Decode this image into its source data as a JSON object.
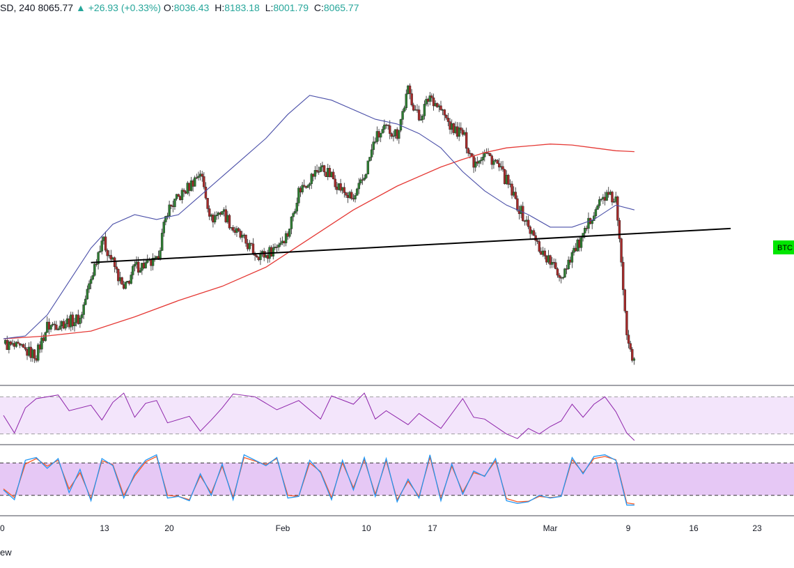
{
  "header": {
    "symbol": "SD, 240",
    "last": "8065.77",
    "change_arrow": "▲",
    "change": "+26.93 (+0.33%)",
    "o_label": "O:",
    "o_value": "8036.43",
    "h_label": "H:",
    "h_value": "8183.18",
    "l_label": "L:",
    "l_value": "8001.79",
    "c_label": "C:",
    "c_value": "8065.77"
  },
  "price_tag": {
    "label": "BTC",
    "color": "#00e600"
  },
  "footer": {
    "brand_fragment": "ew"
  },
  "colors": {
    "candle_up": "#2e7d32",
    "candle_down": "#a52a2a",
    "ma_fast": "#4a4fa8",
    "ma_slow": "#e53935",
    "trendline": "#000000",
    "rsi_line": "#8e24aa",
    "rsi_band": "#f3e5fb",
    "stoch_k": "#2196f3",
    "stoch_d": "#ff5722",
    "stoch_band": "#e6c8f5"
  },
  "chart_data": {
    "type": "candlestick",
    "x_ticks": [
      "0",
      "13",
      "20",
      "Feb",
      "10",
      "17",
      "Mar",
      "9",
      "16",
      "23"
    ],
    "price_path": [
      [
        0,
        8300
      ],
      [
        3,
        8180
      ],
      [
        4,
        8480
      ],
      [
        7,
        8560
      ],
      [
        9,
        9400
      ],
      [
        10,
        9150
      ],
      [
        11,
        8850
      ],
      [
        12,
        9100
      ],
      [
        14,
        9150
      ],
      [
        15,
        9700
      ],
      [
        17,
        9950
      ],
      [
        18,
        10100
      ],
      [
        19,
        9600
      ],
      [
        20,
        9700
      ],
      [
        21,
        9500
      ],
      [
        23,
        9250
      ],
      [
        24,
        9220
      ],
      [
        26,
        9450
      ],
      [
        27,
        9900
      ],
      [
        29,
        10150
      ],
      [
        30,
        10050
      ],
      [
        31,
        9900
      ],
      [
        32,
        9800
      ],
      [
        33,
        10050
      ],
      [
        34,
        10450
      ],
      [
        35,
        10550
      ],
      [
        36,
        10500
      ],
      [
        37,
        10950
      ],
      [
        38,
        10650
      ],
      [
        39,
        10900
      ],
      [
        40,
        10750
      ],
      [
        41,
        10550
      ],
      [
        42,
        10500
      ],
      [
        43,
        10200
      ],
      [
        44,
        10300
      ],
      [
        45,
        10200
      ],
      [
        46,
        10000
      ],
      [
        47,
        9750
      ],
      [
        49,
        9300
      ],
      [
        50,
        9150
      ],
      [
        51,
        9000
      ],
      [
        52,
        9250
      ],
      [
        53,
        9400
      ],
      [
        54,
        9700
      ],
      [
        55,
        9850
      ],
      [
        56,
        9800
      ],
      [
        57,
        8450
      ],
      [
        57.7,
        8065
      ]
    ],
    "ma_fast_path": [
      [
        0,
        8350
      ],
      [
        2,
        8380
      ],
      [
        4,
        8600
      ],
      [
        6,
        8950
      ],
      [
        8,
        9300
      ],
      [
        10,
        9550
      ],
      [
        12,
        9650
      ],
      [
        14,
        9600
      ],
      [
        16,
        9650
      ],
      [
        18,
        9850
      ],
      [
        20,
        10050
      ],
      [
        22,
        10250
      ],
      [
        24,
        10450
      ],
      [
        26,
        10700
      ],
      [
        28,
        10900
      ],
      [
        30,
        10850
      ],
      [
        32,
        10750
      ],
      [
        34,
        10650
      ],
      [
        36,
        10600
      ],
      [
        38,
        10500
      ],
      [
        40,
        10350
      ],
      [
        42,
        10100
      ],
      [
        44,
        9900
      ],
      [
        46,
        9750
      ],
      [
        48,
        9650
      ],
      [
        50,
        9520
      ],
      [
        52,
        9520
      ],
      [
        54,
        9600
      ],
      [
        56,
        9750
      ],
      [
        57.7,
        9700
      ]
    ],
    "ma_slow_path": [
      [
        0,
        8350
      ],
      [
        4,
        8380
      ],
      [
        8,
        8430
      ],
      [
        12,
        8580
      ],
      [
        16,
        8750
      ],
      [
        20,
        8900
      ],
      [
        24,
        9100
      ],
      [
        28,
        9400
      ],
      [
        32,
        9700
      ],
      [
        36,
        9950
      ],
      [
        40,
        10150
      ],
      [
        42,
        10230
      ],
      [
        44,
        10300
      ],
      [
        46,
        10350
      ],
      [
        48,
        10370
      ],
      [
        50,
        10390
      ],
      [
        52,
        10380
      ],
      [
        54,
        10350
      ],
      [
        56,
        10320
      ],
      [
        57.7,
        10310
      ]
    ],
    "trendline": {
      "start": [
        8,
        9148
      ],
      "end": [
        66.5,
        9505
      ]
    },
    "price_range": [
      7920,
      11680
    ],
    "rsi": {
      "range": [
        20,
        80
      ],
      "band": [
        30,
        70
      ],
      "path": [
        [
          0,
          50
        ],
        [
          1,
          31
        ],
        [
          2,
          58
        ],
        [
          3,
          68
        ],
        [
          5,
          72
        ],
        [
          6,
          55
        ],
        [
          8,
          61
        ],
        [
          9,
          45
        ],
        [
          10,
          64
        ],
        [
          11,
          74
        ],
        [
          12,
          48
        ],
        [
          13,
          63
        ],
        [
          14,
          66
        ],
        [
          15,
          42
        ],
        [
          17,
          49
        ],
        [
          18,
          33
        ],
        [
          19,
          45
        ],
        [
          20,
          58
        ],
        [
          21,
          73
        ],
        [
          23,
          70
        ],
        [
          25,
          56
        ],
        [
          27,
          66
        ],
        [
          29,
          46
        ],
        [
          30,
          71
        ],
        [
          32,
          62
        ],
        [
          33,
          74
        ],
        [
          34,
          46
        ],
        [
          35,
          55
        ],
        [
          37,
          40
        ],
        [
          38,
          52
        ],
        [
          40,
          36
        ],
        [
          42,
          68
        ],
        [
          43,
          48
        ],
        [
          44,
          46
        ],
        [
          46,
          30
        ],
        [
          47,
          25
        ],
        [
          48,
          36
        ],
        [
          49,
          30
        ],
        [
          50,
          38
        ],
        [
          51,
          44
        ],
        [
          52,
          62
        ],
        [
          53,
          48
        ],
        [
          54,
          62
        ],
        [
          55,
          70
        ],
        [
          56,
          54
        ],
        [
          57,
          31
        ],
        [
          57.7,
          23
        ]
      ]
    },
    "stoch": {
      "range": [
        -10,
        110
      ],
      "band": [
        20,
        80
      ],
      "k_path": [
        [
          0,
          30
        ],
        [
          1,
          12
        ],
        [
          2,
          85
        ],
        [
          3,
          90
        ],
        [
          4,
          70
        ],
        [
          5,
          88
        ],
        [
          6,
          25
        ],
        [
          7,
          68
        ],
        [
          8,
          10
        ],
        [
          9,
          88
        ],
        [
          10,
          75
        ],
        [
          11,
          15
        ],
        [
          12,
          60
        ],
        [
          13,
          85
        ],
        [
          14,
          95
        ],
        [
          15,
          15
        ],
        [
          16,
          18
        ],
        [
          17,
          10
        ],
        [
          18,
          60
        ],
        [
          19,
          20
        ],
        [
          20,
          78
        ],
        [
          21,
          12
        ],
        [
          22,
          95
        ],
        [
          24,
          75
        ],
        [
          25,
          90
        ],
        [
          26,
          15
        ],
        [
          27,
          18
        ],
        [
          28,
          85
        ],
        [
          29,
          62
        ],
        [
          30,
          12
        ],
        [
          31,
          85
        ],
        [
          32,
          30
        ],
        [
          33,
          90
        ],
        [
          34,
          18
        ],
        [
          35,
          88
        ],
        [
          36,
          8
        ],
        [
          37,
          50
        ],
        [
          38,
          15
        ],
        [
          39,
          95
        ],
        [
          40,
          10
        ],
        [
          41,
          78
        ],
        [
          42,
          22
        ],
        [
          43,
          65
        ],
        [
          44,
          55
        ],
        [
          45,
          88
        ],
        [
          46,
          10
        ],
        [
          47,
          5
        ],
        [
          48,
          8
        ],
        [
          49,
          20
        ],
        [
          50,
          15
        ],
        [
          51,
          18
        ],
        [
          52,
          90
        ],
        [
          53,
          60
        ],
        [
          54,
          92
        ],
        [
          55,
          95
        ],
        [
          56,
          85
        ],
        [
          57,
          2
        ],
        [
          57.7,
          2
        ]
      ],
      "d_path": [
        [
          0,
          32
        ],
        [
          1,
          16
        ],
        [
          2,
          78
        ],
        [
          3,
          88
        ],
        [
          4,
          74
        ],
        [
          5,
          85
        ],
        [
          6,
          32
        ],
        [
          7,
          62
        ],
        [
          8,
          14
        ],
        [
          9,
          84
        ],
        [
          10,
          77
        ],
        [
          11,
          20
        ],
        [
          12,
          56
        ],
        [
          13,
          82
        ],
        [
          14,
          92
        ],
        [
          15,
          20
        ],
        [
          16,
          18
        ],
        [
          17,
          12
        ],
        [
          18,
          56
        ],
        [
          19,
          24
        ],
        [
          20,
          74
        ],
        [
          21,
          16
        ],
        [
          22,
          90
        ],
        [
          24,
          77
        ],
        [
          25,
          88
        ],
        [
          26,
          20
        ],
        [
          27,
          18
        ],
        [
          28,
          80
        ],
        [
          29,
          64
        ],
        [
          30,
          16
        ],
        [
          31,
          80
        ],
        [
          32,
          34
        ],
        [
          33,
          86
        ],
        [
          34,
          22
        ],
        [
          35,
          84
        ],
        [
          36,
          12
        ],
        [
          37,
          46
        ],
        [
          38,
          18
        ],
        [
          39,
          90
        ],
        [
          40,
          14
        ],
        [
          41,
          74
        ],
        [
          42,
          26
        ],
        [
          43,
          62
        ],
        [
          44,
          56
        ],
        [
          45,
          84
        ],
        [
          46,
          14
        ],
        [
          47,
          8
        ],
        [
          48,
          9
        ],
        [
          49,
          18
        ],
        [
          50,
          16
        ],
        [
          51,
          18
        ],
        [
          52,
          86
        ],
        [
          53,
          62
        ],
        [
          54,
          88
        ],
        [
          55,
          92
        ],
        [
          56,
          86
        ],
        [
          57,
          6
        ],
        [
          57.7,
          4
        ]
      ]
    }
  }
}
